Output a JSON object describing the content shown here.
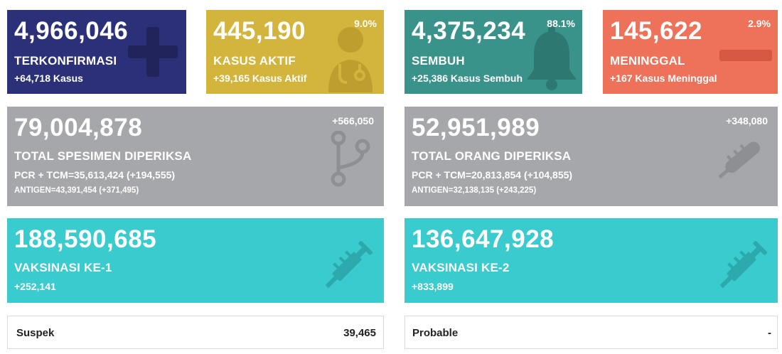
{
  "cards": {
    "terkonfirmasi": {
      "value": "4,966,046",
      "label": "TERKONFIRMASI",
      "delta": "+64,718 Kasus",
      "icon": "plus-icon",
      "color": "#2c3079"
    },
    "kasus_aktif": {
      "value": "445,190",
      "label": "KASUS AKTIF",
      "delta": "+39,165 Kasus Aktif",
      "percent": "9.0%",
      "icon": "doctor-icon",
      "color": "#d3b43c"
    },
    "sembuh": {
      "value": "4,375,234",
      "label": "SEMBUH",
      "delta": "+25,386 Kasus Sembuh",
      "percent": "88.1%",
      "icon": "bell-icon",
      "color": "#3a938a"
    },
    "meninggal": {
      "value": "145,622",
      "label": "MENINGGAL",
      "delta": "+167 Kasus Meninggal",
      "percent": "2.9%",
      "icon": "minus-icon",
      "color": "#ee7159"
    },
    "spesimen": {
      "value": "79,004,878",
      "label": "TOTAL SPESIMEN DIPERIKSA",
      "increment": "+566,050",
      "pcr": "PCR + TCM=35,613,424 (+194,555)",
      "antigen": "ANTIGEN=43,391,454 (+371,495)",
      "icon": "branch-icon",
      "color": "#a6a7ab"
    },
    "orang": {
      "value": "52,951,989",
      "label": "TOTAL ORANG DIPERIKSA",
      "increment": "+348,080",
      "pcr": "PCR + TCM=20,813,854 (+104,855)",
      "antigen": "ANTIGEN=32,138,135 (+243,225)",
      "icon": "thermometer-icon",
      "color": "#a6a7ab"
    },
    "vaksinasi1": {
      "value": "188,590,685",
      "label": "VAKSINASI KE-1",
      "delta": "+252,141",
      "icon": "syringe-icon",
      "color": "#39cbce"
    },
    "vaksinasi2": {
      "value": "136,647,928",
      "label": "VAKSINASI KE-2",
      "delta": "+833,899",
      "icon": "syringe-icon",
      "color": "#39cbce"
    }
  },
  "suspek": {
    "label": "Suspek",
    "value": "39,465"
  },
  "probable": {
    "label": "Probable",
    "value": "-"
  }
}
